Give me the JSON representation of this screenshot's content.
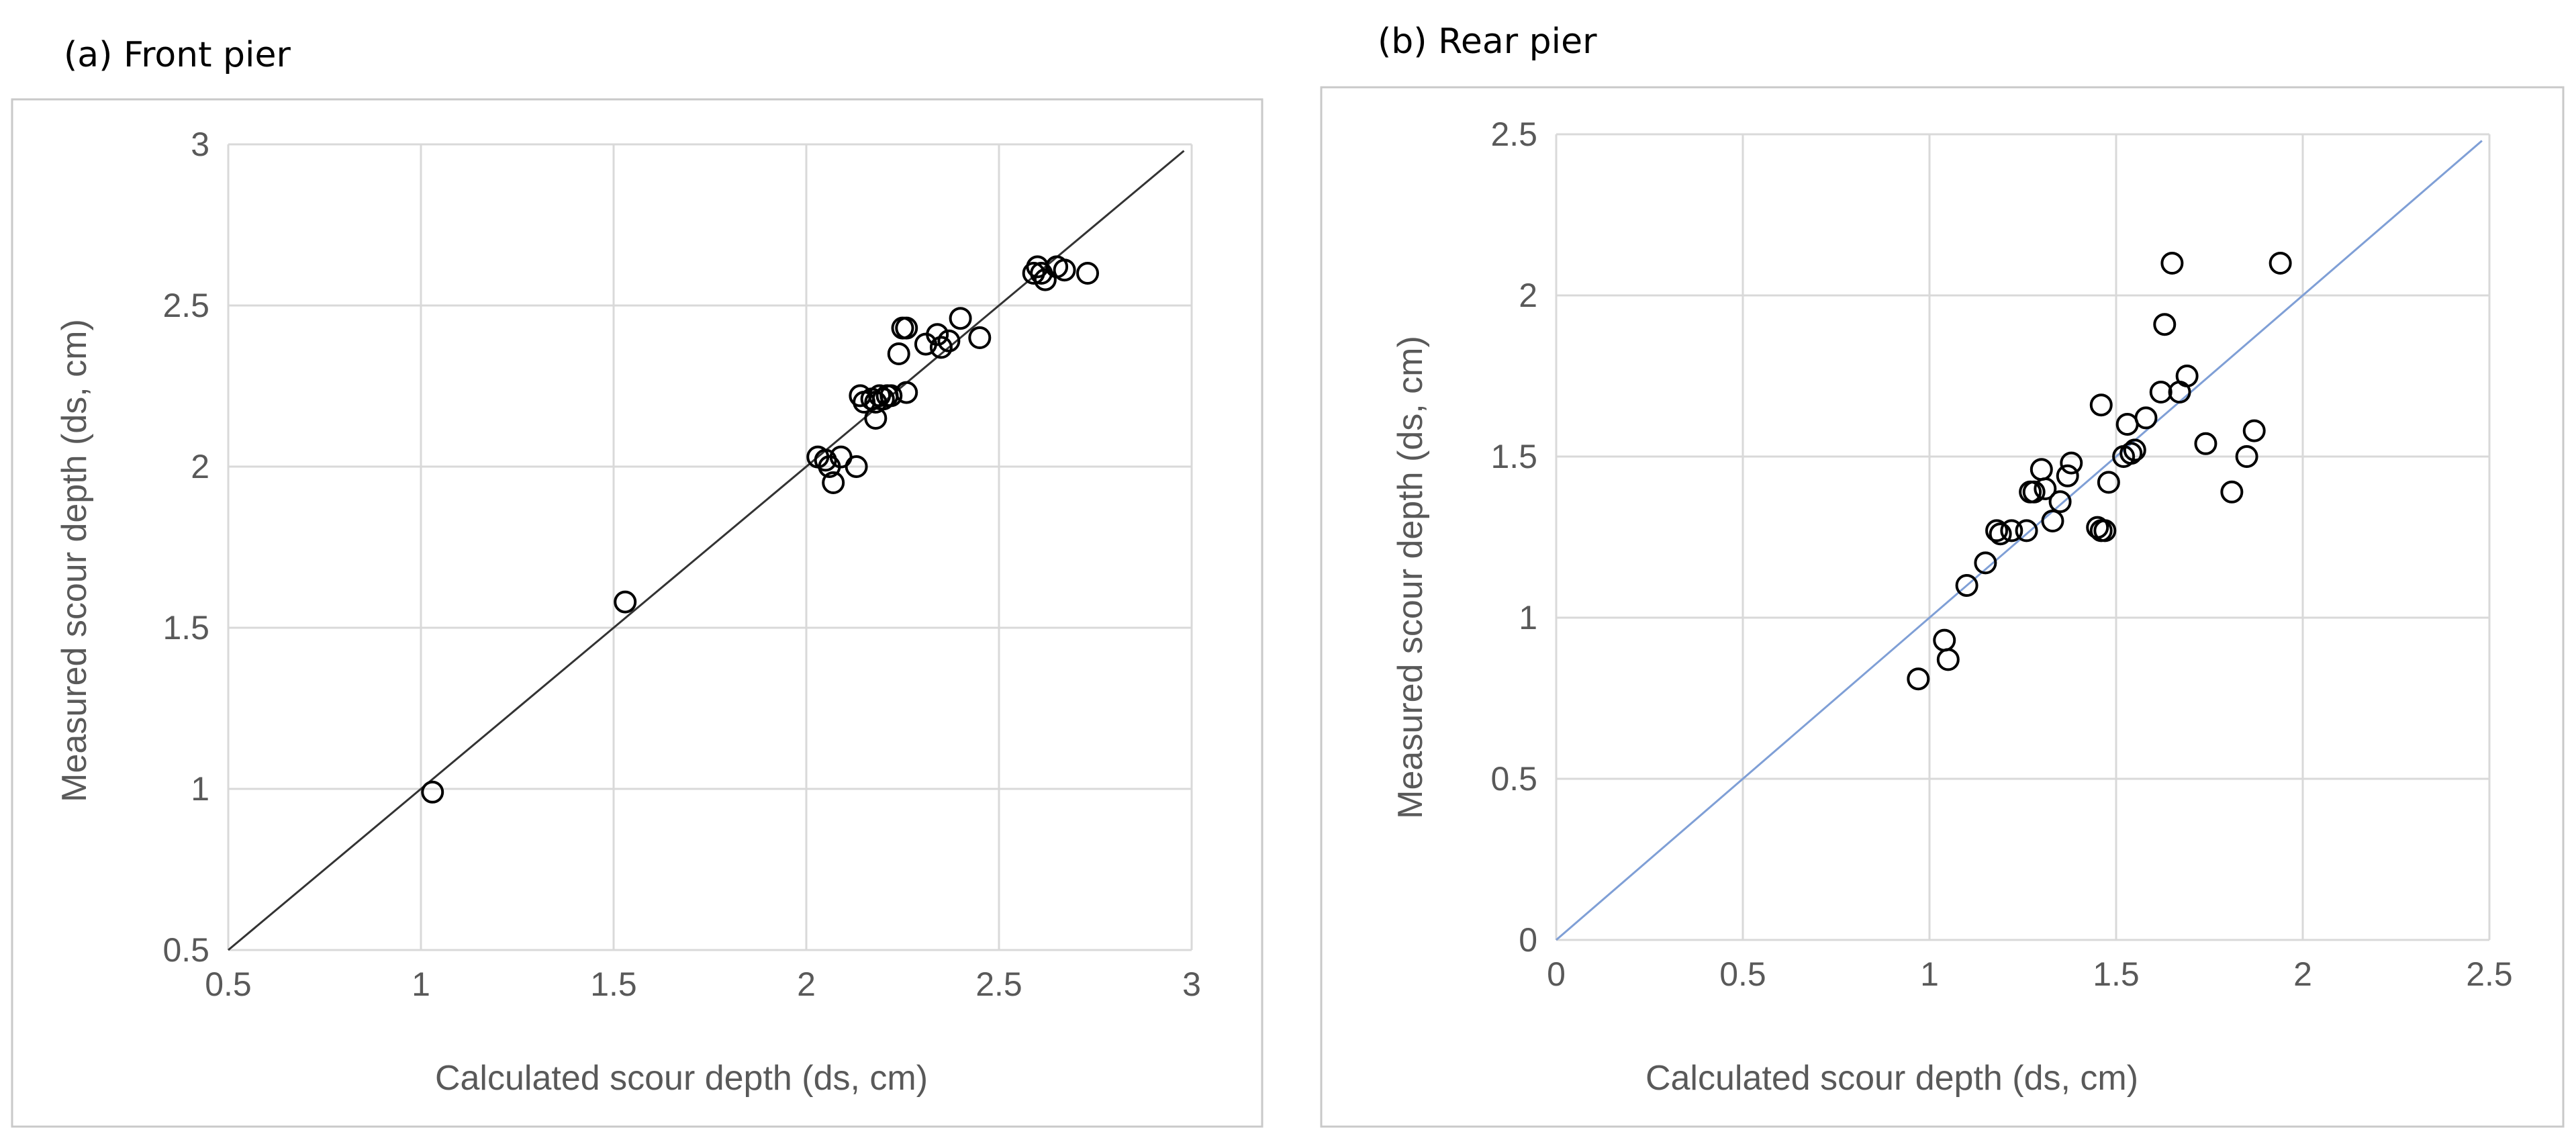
{
  "panels": {
    "a": {
      "label": "(a) Front pier"
    },
    "b": {
      "label": "(b) Rear pier"
    }
  },
  "chart_data": [
    {
      "type": "scatter",
      "title": "(a) Front pier",
      "xlabel": "Calculated scour depth (ds, cm)",
      "ylabel": "Measured scour depth (ds, cm)",
      "xlim": [
        0.5,
        3
      ],
      "ylim": [
        0.5,
        3
      ],
      "xticks": [
        0.5,
        1,
        1.5,
        2,
        2.5,
        3
      ],
      "yticks": [
        0.5,
        1,
        1.5,
        2,
        2.5,
        3
      ],
      "xtick_labels": [
        "0.5",
        "1",
        "1.5",
        "2",
        "2.5",
        "3"
      ],
      "ytick_labels": [
        "0.5",
        "1",
        "1.5",
        "2",
        "2.5",
        "3"
      ],
      "grid": true,
      "line_color": "#333333",
      "marker_color": "#000000",
      "reference_line": {
        "from": [
          0.5,
          0.5
        ],
        "to": [
          2.98,
          2.98
        ]
      },
      "points": [
        [
          1.03,
          0.99
        ],
        [
          1.53,
          1.58
        ],
        [
          2.03,
          2.03
        ],
        [
          2.05,
          2.02
        ],
        [
          2.06,
          2.0
        ],
        [
          2.07,
          1.95
        ],
        [
          2.09,
          2.03
        ],
        [
          2.13,
          2.0
        ],
        [
          2.14,
          2.22
        ],
        [
          2.15,
          2.2
        ],
        [
          2.17,
          2.21
        ],
        [
          2.18,
          2.15
        ],
        [
          2.18,
          2.2
        ],
        [
          2.19,
          2.22
        ],
        [
          2.2,
          2.21
        ],
        [
          2.21,
          2.22
        ],
        [
          2.22,
          2.22
        ],
        [
          2.24,
          2.35
        ],
        [
          2.25,
          2.43
        ],
        [
          2.26,
          2.43
        ],
        [
          2.26,
          2.23
        ],
        [
          2.31,
          2.38
        ],
        [
          2.34,
          2.41
        ],
        [
          2.35,
          2.37
        ],
        [
          2.37,
          2.39
        ],
        [
          2.4,
          2.46
        ],
        [
          2.45,
          2.4
        ],
        [
          2.59,
          2.6
        ],
        [
          2.6,
          2.62
        ],
        [
          2.61,
          2.6
        ],
        [
          2.62,
          2.58
        ],
        [
          2.65,
          2.62
        ],
        [
          2.67,
          2.61
        ],
        [
          2.73,
          2.6
        ]
      ]
    },
    {
      "type": "scatter",
      "title": "(b) Rear pier",
      "xlabel": "Calculated scour depth (ds, cm)",
      "ylabel": "Measured scour depth (ds, cm)",
      "xlim": [
        0,
        2.5
      ],
      "ylim": [
        0,
        2.5
      ],
      "xticks": [
        0,
        0.5,
        1,
        1.5,
        2,
        2.5
      ],
      "yticks": [
        0,
        0.5,
        1,
        1.5,
        2,
        2.5
      ],
      "xtick_labels": [
        "0",
        "0.5",
        "1",
        "1.5",
        "2",
        "2.5"
      ],
      "ytick_labels": [
        "0",
        "0.5",
        "1",
        "1.5",
        "2",
        "2.5"
      ],
      "grid": true,
      "line_color": "#7f9fd6",
      "marker_color": "#000000",
      "reference_line": {
        "from": [
          0,
          0
        ],
        "to": [
          2.48,
          2.48
        ]
      },
      "points": [
        [
          0.97,
          0.81
        ],
        [
          1.04,
          0.93
        ],
        [
          1.05,
          0.87
        ],
        [
          1.1,
          1.1
        ],
        [
          1.15,
          1.17
        ],
        [
          1.18,
          1.27
        ],
        [
          1.19,
          1.26
        ],
        [
          1.22,
          1.27
        ],
        [
          1.26,
          1.27
        ],
        [
          1.27,
          1.39
        ],
        [
          1.28,
          1.39
        ],
        [
          1.3,
          1.46
        ],
        [
          1.31,
          1.4
        ],
        [
          1.33,
          1.3
        ],
        [
          1.35,
          1.36
        ],
        [
          1.37,
          1.44
        ],
        [
          1.38,
          1.48
        ],
        [
          1.45,
          1.28
        ],
        [
          1.46,
          1.66
        ],
        [
          1.46,
          1.27
        ],
        [
          1.47,
          1.27
        ],
        [
          1.48,
          1.42
        ],
        [
          1.52,
          1.5
        ],
        [
          1.53,
          1.6
        ],
        [
          1.54,
          1.51
        ],
        [
          1.55,
          1.52
        ],
        [
          1.58,
          1.62
        ],
        [
          1.62,
          1.7
        ],
        [
          1.63,
          1.91
        ],
        [
          1.65,
          2.1
        ],
        [
          1.67,
          1.7
        ],
        [
          1.69,
          1.75
        ],
        [
          1.74,
          1.54
        ],
        [
          1.81,
          1.39
        ],
        [
          1.85,
          1.5
        ],
        [
          1.87,
          1.58
        ],
        [
          1.94,
          2.1
        ]
      ]
    }
  ]
}
